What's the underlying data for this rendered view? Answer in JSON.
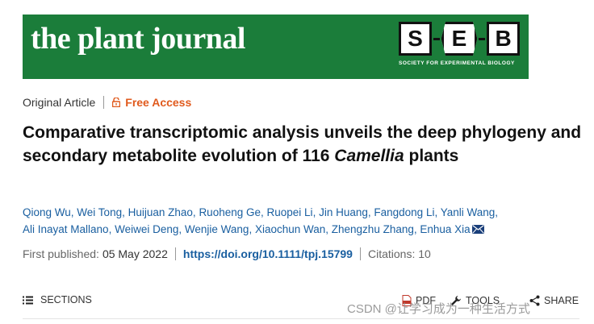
{
  "journal": {
    "name": "the plant journal",
    "seb_letters": [
      "S",
      "E",
      "B"
    ],
    "seb_caption": "SOCIETY FOR EXPERIMENTAL BIOLOGY",
    "banner_color": "#1b7d3a"
  },
  "article": {
    "type": "Original Article",
    "access": "Free Access",
    "access_color": "#e05a1d",
    "title_prefix": "Comparative transcriptomic analysis unveils the deep phylogeny and secondary metabolite evolution of 116 ",
    "title_italic": "Camellia",
    "title_suffix": " plants",
    "authors": [
      "Qiong Wu",
      "Wei Tong",
      "Huijuan Zhao",
      "Ruoheng Ge",
      "Ruopei Li",
      "Jin Huang",
      "Fangdong Li",
      "Yanli Wang",
      "Ali Inayat Mallano",
      "Weiwei Deng",
      "Wenjie Wang",
      "Xiaochun Wan",
      "Zhengzhu Zhang",
      "Enhua Xia"
    ],
    "first_published_label": "First published:",
    "first_published_date": "05 May 2022",
    "doi": "https://doi.org/10.1111/tpj.15799",
    "citations": "Citations: 10",
    "link_color": "#1a5fa0"
  },
  "toolbar": {
    "sections": "SECTIONS",
    "pdf": "PDF",
    "tools": "TOOLS",
    "share": "SHARE"
  },
  "watermark": "CSDN @让学习成为一种生活方式"
}
